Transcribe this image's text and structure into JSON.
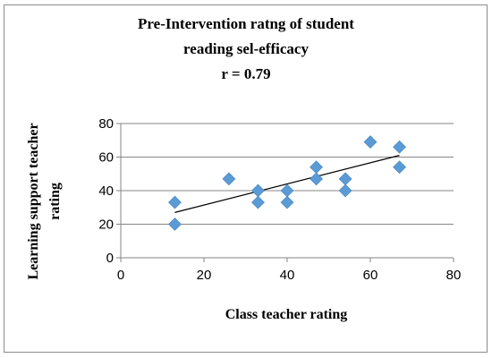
{
  "chart_data": {
    "type": "scatter",
    "title_lines": [
      "Pre-Intervention ratng of student",
      "reading sel-efficacy",
      "r = 0.79"
    ],
    "xlabel": "Class teacher rating",
    "ylabel_lines": [
      "Learning support teacher",
      "rating"
    ],
    "xlim": [
      0,
      80
    ],
    "ylim": [
      0,
      80
    ],
    "x_ticks": [
      "0",
      "20",
      "40",
      "60",
      "80"
    ],
    "y_ticks": [
      "0",
      "20",
      "40",
      "60",
      "80"
    ],
    "grid": "horizontal",
    "legend": "none",
    "marker": "diamond",
    "marker_color": "#5b9bd5",
    "trendline": {
      "type": "linear",
      "from": [
        13,
        27
      ],
      "to": [
        67,
        61
      ],
      "color": "#000000"
    },
    "points": [
      {
        "x": 13,
        "y": 33
      },
      {
        "x": 13,
        "y": 20
      },
      {
        "x": 26,
        "y": 47
      },
      {
        "x": 33,
        "y": 40
      },
      {
        "x": 33,
        "y": 33
      },
      {
        "x": 40,
        "y": 40
      },
      {
        "x": 40,
        "y": 33
      },
      {
        "x": 47,
        "y": 54
      },
      {
        "x": 47,
        "y": 47
      },
      {
        "x": 54,
        "y": 47
      },
      {
        "x": 54,
        "y": 40
      },
      {
        "x": 60,
        "y": 69
      },
      {
        "x": 67,
        "y": 66
      },
      {
        "x": 67,
        "y": 54
      }
    ]
  }
}
